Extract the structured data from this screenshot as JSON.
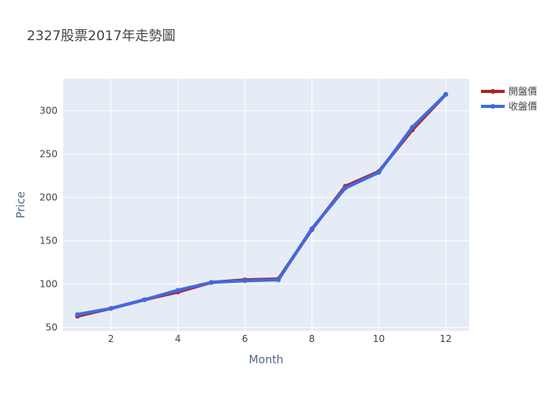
{
  "chart_data": {
    "type": "line",
    "title": "2327股票2017年走勢圖",
    "xlabel": "Month",
    "ylabel": "Price",
    "x": [
      1,
      2,
      3,
      4,
      5,
      6,
      7,
      8,
      9,
      10,
      11,
      12
    ],
    "xlim": [
      0.57,
      12.7
    ],
    "ylim": [
      46,
      337
    ],
    "x_ticks": [
      2,
      4,
      6,
      8,
      10,
      12
    ],
    "y_ticks": [
      50,
      100,
      150,
      200,
      250,
      300
    ],
    "grid": true,
    "legend_position": "top-right",
    "series": [
      {
        "name": "開盤價",
        "color": "#b22222",
        "values": [
          63,
          72,
          82,
          91,
          102,
          105,
          106,
          163,
          213,
          230,
          278,
          319
        ]
      },
      {
        "name": "收盤價",
        "color": "#4169e1",
        "values": [
          65,
          72,
          82,
          93,
          102,
          104,
          105,
          164,
          211,
          229,
          281,
          319
        ]
      }
    ]
  }
}
